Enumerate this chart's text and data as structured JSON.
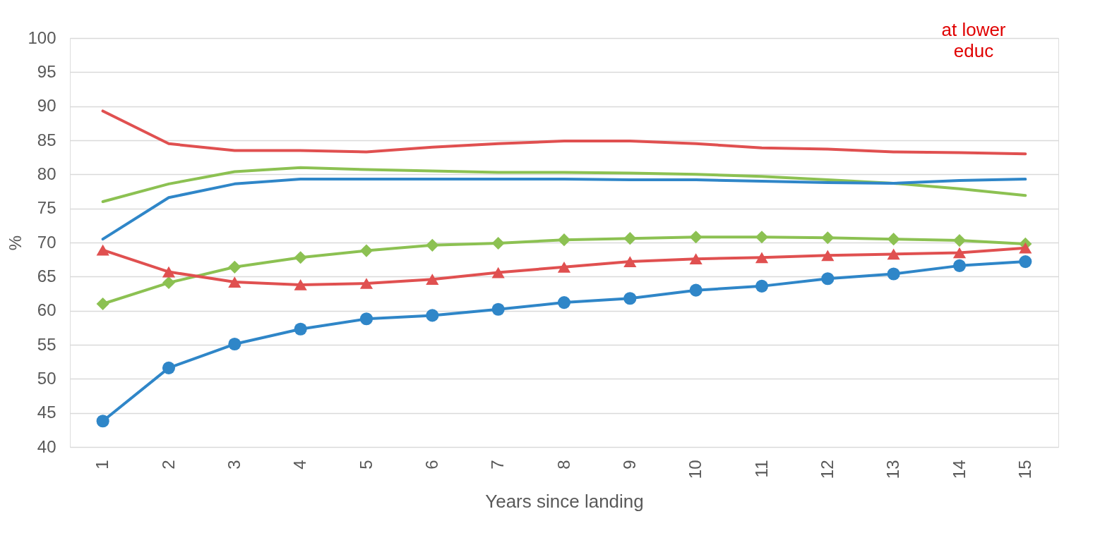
{
  "chart_data": {
    "type": "line",
    "xlabel": "Years since landing",
    "ylabel": "%",
    "categories": [
      "1",
      "2",
      "3",
      "4",
      "5",
      "6",
      "7",
      "8",
      "9",
      "10",
      "11",
      "12",
      "13",
      "14",
      "15"
    ],
    "series": [
      {
        "color": "#e05050",
        "marker": "none",
        "values": [
          89.3,
          84.5,
          83.5,
          83.5,
          83.3,
          84,
          84.5,
          84.9,
          84.9,
          84.5,
          83.9,
          83.7,
          83.3,
          83.2,
          83.0
        ]
      },
      {
        "color": "#8cc152",
        "marker": "none",
        "values": [
          76,
          78.6,
          80.4,
          81,
          80.7,
          80.5,
          80.3,
          80.3,
          80.2,
          80,
          79.7,
          79.2,
          78.7,
          77.9,
          76.9
        ]
      },
      {
        "color": "#2f86c8",
        "marker": "none",
        "values": [
          70.5,
          76.6,
          78.6,
          79.3,
          79.3,
          79.3,
          79.3,
          79.3,
          79.2,
          79.2,
          79,
          78.8,
          78.7,
          79.1,
          79.3
        ]
      },
      {
        "color": "#8cc152",
        "marker": "diamond",
        "values": [
          61,
          64.1,
          66.4,
          67.8,
          68.8,
          69.6,
          69.9,
          70.4,
          70.6,
          70.8,
          70.8,
          70.7,
          70.5,
          70.3,
          69.8
        ]
      },
      {
        "color": "#e05050",
        "marker": "triangle",
        "values": [
          68.9,
          65.7,
          64.2,
          63.8,
          64,
          64.6,
          65.6,
          66.4,
          67.2,
          67.6,
          67.8,
          68.1,
          68.3,
          68.5,
          69.2
        ]
      },
      {
        "color": "#2f86c8",
        "marker": "circle",
        "values": [
          43.8,
          51.6,
          55.1,
          57.3,
          58.8,
          59.3,
          60.2,
          61.2,
          61.8,
          63,
          63.6,
          64.7,
          65.4,
          66.6,
          67.2
        ]
      }
    ],
    "ylim": [
      40,
      100
    ],
    "yticks": [
      40,
      45,
      50,
      55,
      60,
      65,
      70,
      75,
      80,
      85,
      90,
      95,
      100
    ],
    "grid": "y",
    "annotations": [
      "at lower\neduc"
    ]
  }
}
